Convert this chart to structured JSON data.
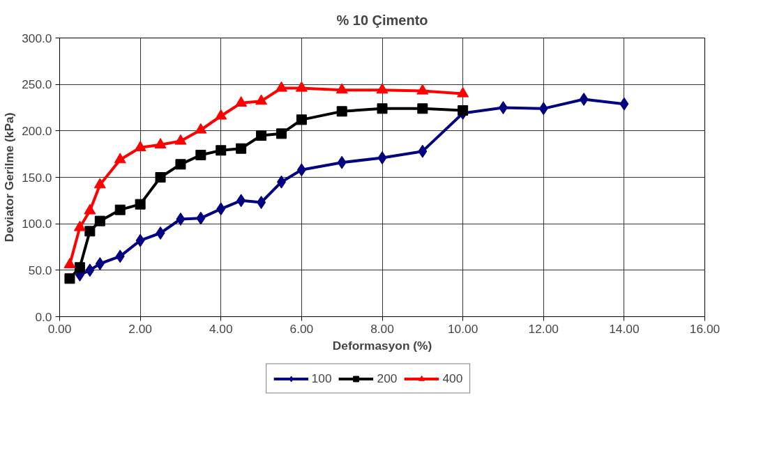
{
  "chart_data": {
    "type": "line",
    "title": "% 10 Çimento",
    "xlabel": "Deformasyon (%)",
    "ylabel": "Deviator Gerilme (kPa)",
    "xlim": [
      0,
      16
    ],
    "ylim": [
      0,
      300
    ],
    "xticks": [
      {
        "value": 0,
        "label": "0.00"
      },
      {
        "value": 2,
        "label": "2.00"
      },
      {
        "value": 4,
        "label": "4.00"
      },
      {
        "value": 6,
        "label": "6.00"
      },
      {
        "value": 8,
        "label": "8.00"
      },
      {
        "value": 10,
        "label": "10.00"
      },
      {
        "value": 12,
        "label": "12.00"
      },
      {
        "value": 14,
        "label": "14.00"
      },
      {
        "value": 16,
        "label": "16.00"
      }
    ],
    "yticks": [
      {
        "value": 0,
        "label": "0.0"
      },
      {
        "value": 50,
        "label": "50.0"
      },
      {
        "value": 100,
        "label": "100.0"
      },
      {
        "value": 150,
        "label": "150.0"
      },
      {
        "value": 200,
        "label": "200.0"
      },
      {
        "value": 250,
        "label": "250.0"
      },
      {
        "value": 300,
        "label": "300.0"
      }
    ],
    "grid": true,
    "legend": "bottom",
    "line_style": "solid",
    "series": [
      {
        "name": "100",
        "color": "#000080",
        "marker": "diamond",
        "x": [
          0.5,
          0.75,
          1,
          1.5,
          2,
          2.5,
          3,
          3.5,
          4,
          4.5,
          5,
          5.5,
          6,
          7,
          8,
          9,
          10,
          11,
          12,
          13,
          14
        ],
        "values": [
          45,
          50,
          57,
          65,
          82,
          90,
          105,
          106,
          116,
          125,
          123,
          145,
          158,
          166,
          171,
          178,
          219,
          225,
          224,
          234,
          229
        ]
      },
      {
        "name": "200",
        "color": "#000000",
        "marker": "square",
        "x": [
          0.25,
          0.5,
          0.75,
          1,
          1.5,
          2,
          2.5,
          3,
          3.5,
          4,
          4.5,
          5,
          5.5,
          6,
          7,
          8,
          9,
          10
        ],
        "values": [
          41,
          53,
          92,
          103,
          115,
          121,
          150,
          164,
          174,
          179,
          181,
          195,
          197,
          212,
          221,
          224,
          224,
          222
        ]
      },
      {
        "name": "400",
        "color": "#ff0000",
        "marker": "triangle",
        "x": [
          0.25,
          0.5,
          0.75,
          1,
          1.5,
          2,
          2.5,
          3,
          3.5,
          4,
          4.5,
          5,
          5.5,
          6,
          7,
          8,
          9,
          10
        ],
        "values": [
          56,
          96,
          114,
          142,
          169,
          182,
          185,
          189,
          201,
          216,
          230,
          232,
          246,
          246,
          244,
          244,
          243,
          240
        ]
      }
    ]
  }
}
